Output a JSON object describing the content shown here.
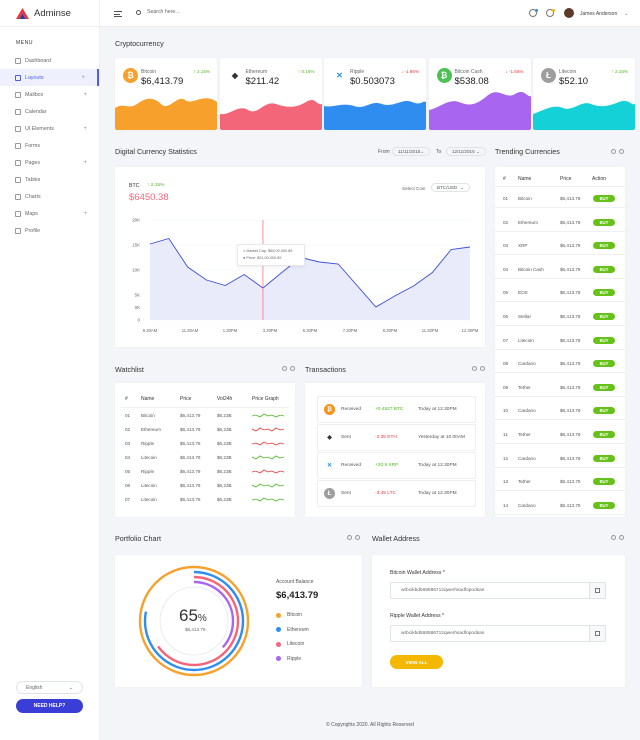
{
  "app": {
    "name": "Adminse"
  },
  "sidebar": {
    "menu_label": "MENU",
    "items": [
      {
        "label": "Dashboard",
        "icon": "dashboard-icon",
        "active": false,
        "expand": false
      },
      {
        "label": "Layouts",
        "icon": "layouts-icon",
        "active": true,
        "expand": true
      },
      {
        "label": "Mailbox",
        "icon": "mail-icon",
        "active": false,
        "expand": true
      },
      {
        "label": "Calendar",
        "icon": "calendar-icon",
        "active": false,
        "expand": false
      },
      {
        "label": "UI Elements",
        "icon": "wrench-icon",
        "active": false,
        "expand": true
      },
      {
        "label": "Forms",
        "icon": "form-icon",
        "active": false,
        "expand": false
      },
      {
        "label": "Pages",
        "icon": "pages-icon",
        "active": false,
        "expand": true
      },
      {
        "label": "Tables",
        "icon": "table-icon",
        "active": false,
        "expand": false
      },
      {
        "label": "Charts",
        "icon": "chart-icon",
        "active": false,
        "expand": false
      },
      {
        "label": "Maps",
        "icon": "map-icon",
        "active": false,
        "expand": true
      },
      {
        "label": "Profile",
        "icon": "user-icon",
        "active": false,
        "expand": false
      }
    ],
    "language": "English",
    "help_button": "NEED HELP?"
  },
  "topbar": {
    "search_placeholder": "Search here...",
    "user_name": "James Anderson"
  },
  "crypto": {
    "title": "Cryptocurrency",
    "cards": [
      {
        "name": "Bitcoin",
        "value": "$6,413.79",
        "change": "2.15%",
        "direction": "up",
        "color": "#f7a12c",
        "wave": "#f7a12c",
        "symbol": "₿"
      },
      {
        "name": "Ethereum",
        "value": "$211.42",
        "change": "0.15%",
        "direction": "up",
        "color": "#ffffff",
        "wave": "#f3667a",
        "symbol": "◆"
      },
      {
        "name": "Ripple",
        "value": "$0.503073",
        "change": "-1.86%",
        "direction": "down",
        "color": "#ffffff",
        "wave": "#2f8df0",
        "symbol": "✕"
      },
      {
        "name": "Bitcoin Cash",
        "value": "$538.08",
        "change": "-1.65%",
        "direction": "down",
        "color": "#4cc254",
        "wave": "#a866f0",
        "symbol": "₿"
      },
      {
        "name": "Litecoin",
        "value": "$52.10",
        "change": "2.15%",
        "direction": "up",
        "color": "#9e9e9e",
        "wave": "#14d1d8",
        "symbol": "Ł"
      }
    ]
  },
  "stats": {
    "title": "Digital Currency Statistics",
    "from_label": "From",
    "from_date": "11/11/2015",
    "to_label": "To",
    "to_date": "12/11/2015",
    "coin_label": "BTC",
    "coin_change": "2.15%",
    "coin_value": "$6450.38",
    "select_coin_label": "Select Coin",
    "select_coin_value": "BTC/USD",
    "tooltip_cap": "Market Cap: $65,00,000.89",
    "tooltip_price": "Price: $21,00,000.89"
  },
  "chart_data": {
    "type": "area",
    "x": [
      "9.30AM",
      "11.30AM",
      "1.30PM",
      "3.30PM",
      "5.30PM",
      "7.30PM",
      "9.30PM",
      "11.30PM",
      "12.30PM"
    ],
    "yticks": [
      "20K",
      "15K",
      "10K",
      "5K",
      "0K",
      "0"
    ],
    "points": [
      [
        0,
        15.2
      ],
      [
        0.5,
        16.3
      ],
      [
        1,
        10.6
      ],
      [
        1.5,
        8
      ],
      [
        2,
        6.9
      ],
      [
        2.5,
        9.1
      ],
      [
        3,
        6.4
      ],
      [
        3.5,
        9.5
      ],
      [
        4,
        12.5
      ],
      [
        4.5,
        11.6
      ],
      [
        5,
        11.2
      ],
      [
        6,
        2.6
      ],
      [
        6.5,
        4.8
      ],
      [
        7,
        6.8
      ],
      [
        7.5,
        9.5
      ],
      [
        8,
        14.1
      ],
      [
        8.5,
        14.6
      ]
    ],
    "ylim": [
      0,
      20
    ],
    "highlight_x": 3
  },
  "trending": {
    "title": "Trending Currencies",
    "headers": [
      "#",
      "Name",
      "Price",
      "Action"
    ],
    "buy_label": "BUY",
    "rows": [
      {
        "n": "01",
        "name": "Bitcoin",
        "price": "$6,413.79"
      },
      {
        "n": "02",
        "name": "Ethereum",
        "price": "$6,413.79"
      },
      {
        "n": "03",
        "name": "XRP",
        "price": "$6,413.79"
      },
      {
        "n": "04",
        "name": "Bitcoin Cash",
        "price": "$6,413.79"
      },
      {
        "n": "05",
        "name": "EOS",
        "price": "$6,413.79"
      },
      {
        "n": "06",
        "name": "Stellar",
        "price": "$6,413.79"
      },
      {
        "n": "07",
        "name": "Litecoin",
        "price": "$6,413.79"
      },
      {
        "n": "08",
        "name": "Cardano",
        "price": "$6,413.79"
      },
      {
        "n": "09",
        "name": "Tether",
        "price": "$6,413.79"
      },
      {
        "n": "10",
        "name": "Cardano",
        "price": "$6,413.79"
      },
      {
        "n": "11",
        "name": "Tether",
        "price": "$6,413.79"
      },
      {
        "n": "12",
        "name": "Cardano",
        "price": "$6,413.79"
      },
      {
        "n": "13",
        "name": "Tether",
        "price": "$6,413.79"
      },
      {
        "n": "14",
        "name": "Cardano",
        "price": "$6,413.79"
      }
    ]
  },
  "watchlist": {
    "title": "Watchlist",
    "headers": [
      "#",
      "Name",
      "Price",
      "Vol24h",
      "Price Graph"
    ],
    "rows": [
      {
        "n": "01",
        "name": "Bitcoin",
        "price": "$6,413.79",
        "vol": "$6,23B",
        "trend": "green"
      },
      {
        "n": "02",
        "name": "Ethereum",
        "price": "$6,413.79",
        "vol": "$6,23B",
        "trend": "red"
      },
      {
        "n": "03",
        "name": "Ripple",
        "price": "$6,413.79",
        "vol": "$6,23B",
        "trend": "red"
      },
      {
        "n": "04",
        "name": "Litecoin",
        "price": "$6,413.79",
        "vol": "$6,23B",
        "trend": "green"
      },
      {
        "n": "05",
        "name": "Ripple",
        "price": "$6,413.79",
        "vol": "$6,23B",
        "trend": "red"
      },
      {
        "n": "06",
        "name": "Litecoin",
        "price": "$6,413.79",
        "vol": "$6,23B",
        "trend": "green"
      },
      {
        "n": "07",
        "name": "Litecoin",
        "price": "$6,413.79",
        "vol": "$6,23B",
        "trend": "green"
      }
    ]
  },
  "transactions": {
    "title": "Transactions",
    "rows": [
      {
        "type": "Received",
        "amount": "+0.4527 BTC",
        "positive": true,
        "time": "Today at 12.30PM",
        "color": "#f7931a",
        "symbol": "₿"
      },
      {
        "type": "Sent",
        "amount": "-2.35 ETH",
        "positive": false,
        "time": "Yesterday at 10.00AM",
        "color": "#ffffff",
        "symbol": "◆"
      },
      {
        "type": "Received",
        "amount": "+20.5 XRP",
        "positive": true,
        "time": "Today at 12.30PM",
        "color": "#ffffff",
        "symbol": "✕"
      },
      {
        "type": "Sent",
        "amount": "-3.45 LTC",
        "positive": false,
        "time": "Today at 12.30PM",
        "color": "#9e9e9e",
        "symbol": "Ł"
      }
    ]
  },
  "portfolio": {
    "title": "Portfolio Chart",
    "percent": "65",
    "percent_sign": "%",
    "center_value": "$6,413.79",
    "balance_label": "Account Balance",
    "balance_value": "$6,413.79",
    "legend": [
      {
        "name": "Bitcoin",
        "color": "#f7a12c"
      },
      {
        "name": "Ethereum",
        "color": "#2f8df0"
      },
      {
        "name": "Litecoin",
        "color": "#f3667a"
      },
      {
        "name": "Ripple",
        "color": "#a866f0"
      }
    ]
  },
  "wallet": {
    "title": "Wallet Address",
    "btc_label": "Bitcoin Wallet Address *",
    "btc_value": "wrbcikbd568586712qwerhsadfopodsan",
    "xrp_label": "Ripple Wallet Address *",
    "xrp_value": "wrbcikbd568586712qwerhsadfopodsan",
    "button": "VIEW ALL"
  },
  "footer": {
    "text": "© Copyrights 2020. All Rights Reserved"
  }
}
